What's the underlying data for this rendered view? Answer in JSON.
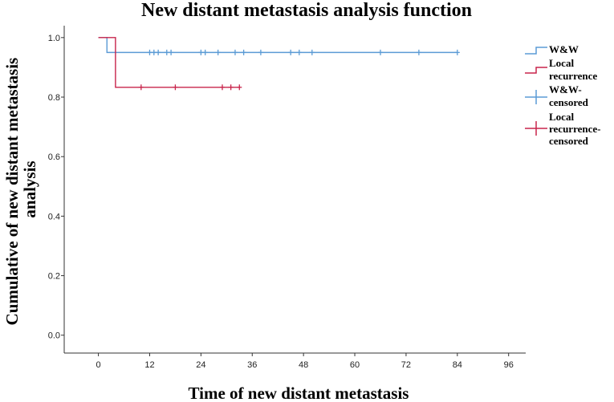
{
  "chart_data": {
    "type": "line",
    "title": "New distant metastasis analysis function",
    "xlabel": "Time of new distant metastasis",
    "ylabel": "Cumulative of new distant metastasis analysis",
    "xlim": [
      -8,
      100
    ],
    "ylim": [
      -0.06,
      1.04
    ],
    "xticks": [
      0,
      12,
      24,
      36,
      48,
      60,
      72,
      84,
      96
    ],
    "yticks": [
      0.0,
      0.2,
      0.4,
      0.6,
      0.8,
      1.0
    ],
    "ytick_labels": [
      "0.0",
      "0.2",
      "0.4",
      "0.6",
      "0.8",
      "1.0"
    ],
    "series": [
      {
        "name": "W&W",
        "color": "#5b9bd5",
        "step_x": [
          0,
          2,
          84
        ],
        "step_y": [
          1.0,
          0.95,
          0.95
        ],
        "censored_name": "W&W-censored",
        "censored_x": [
          12,
          13,
          14,
          16,
          17,
          24,
          25,
          28,
          32,
          34,
          38,
          45,
          47,
          50,
          66,
          75,
          84
        ],
        "censored_y": 0.95
      },
      {
        "name": "Local recurrence",
        "color": "#c8244b",
        "step_x": [
          0,
          4,
          33
        ],
        "step_y": [
          1.0,
          0.833,
          0.833
        ],
        "censored_name": "Local recurrence-censored",
        "censored_x": [
          10,
          18,
          29,
          31,
          33
        ],
        "censored_y": 0.833
      }
    ],
    "legend": {
      "position": "right",
      "entries": [
        "W&W",
        "Local recurrence",
        "W&W-censored",
        "Local recurrence-censored"
      ]
    }
  }
}
